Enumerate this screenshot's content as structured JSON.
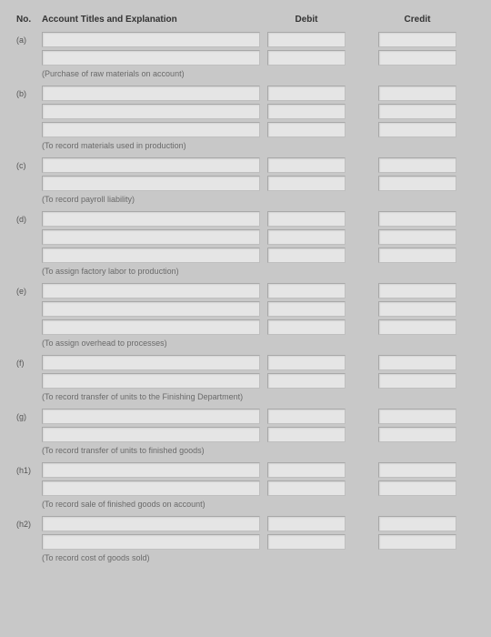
{
  "header": {
    "no": "No.",
    "exp": "Account Titles and Explanation",
    "debit": "Debit",
    "credit": "Credit"
  },
  "entries": [
    {
      "num": "(a)",
      "rows": 2,
      "caption": "(Purchase of raw materials on account)"
    },
    {
      "num": "(b)",
      "rows": 3,
      "caption": "(To record materials used in production)"
    },
    {
      "num": "(c)",
      "rows": 2,
      "caption": "(To record payroll liability)"
    },
    {
      "num": "(d)",
      "rows": 3,
      "caption": "(To assign factory labor to production)"
    },
    {
      "num": "(e)",
      "rows": 3,
      "caption": "(To assign overhead to processes)"
    },
    {
      "num": "(f)",
      "rows": 2,
      "caption": "(To record transfer of units to the Finishing Department)"
    },
    {
      "num": "(g)",
      "rows": 2,
      "caption": "(To record transfer of units to finished goods)"
    },
    {
      "num": "(h1)",
      "rows": 2,
      "caption": "(To record sale of finished goods on account)"
    },
    {
      "num": "(h2)",
      "rows": 2,
      "caption": "(To record cost of goods sold)"
    }
  ],
  "colors": {
    "page_bg": "#c8c8c8",
    "input_bg": "#e5e5e5",
    "border": "#bfbfbf",
    "text": "#333333",
    "caption": "#6a6a6a"
  }
}
